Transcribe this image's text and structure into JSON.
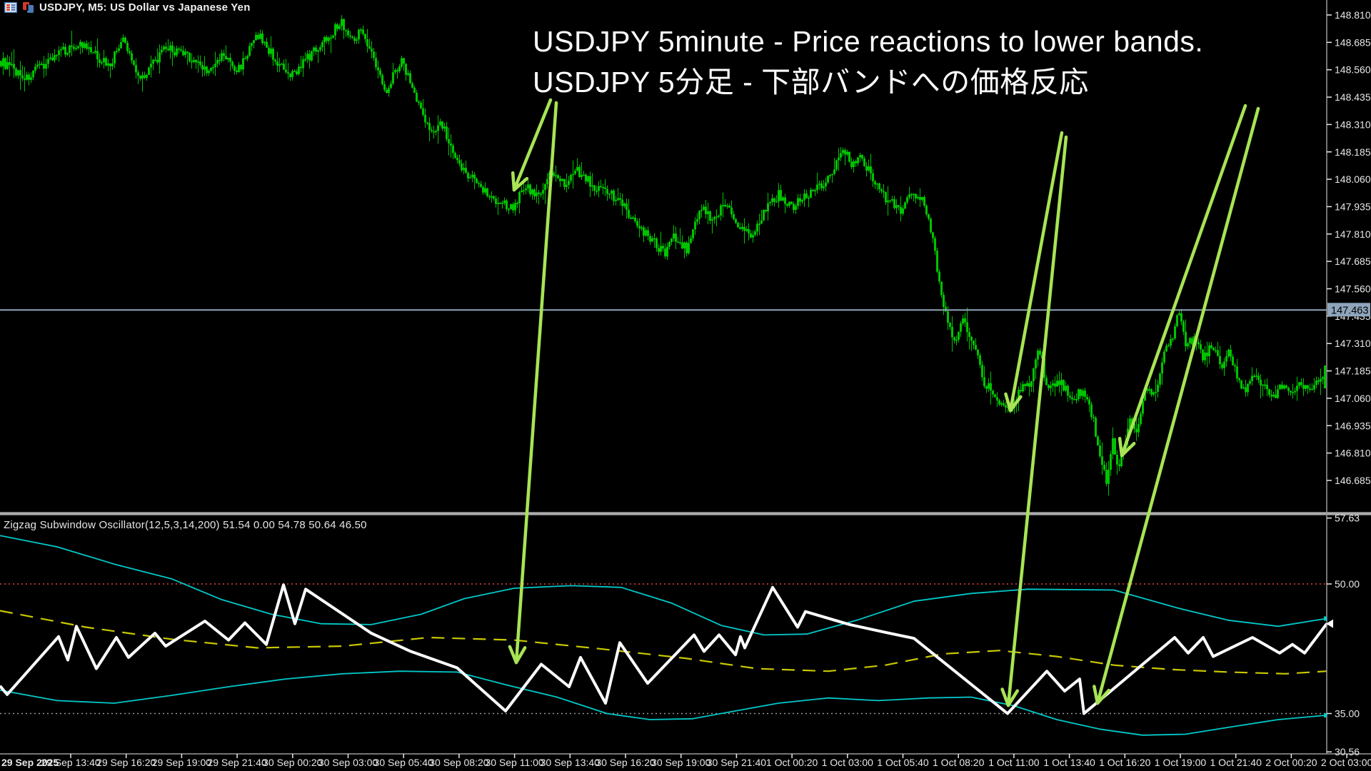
{
  "window": {
    "title": "USDJPY, M5:  US Dollar vs Japanese Yen"
  },
  "annotation": {
    "line1": "USDJPY 5minute - Price reactions to lower bands.",
    "line2": "USDJPY 5分足 - 下部バンドへの価格反応"
  },
  "colors": {
    "background": "#000000",
    "candle": "#00C300",
    "zigzag": "#FFFFFF",
    "bands": "#00C8C8",
    "middle_band": "#C8C800",
    "level_50": "#B03030",
    "level_35": "#9A9A9A",
    "price_marker": "#8FA5BC",
    "arrow": "#A8E455",
    "axis_text": "#E8E8E8",
    "axis_line": "#9A9A9A",
    "separator": "#ACACAC"
  },
  "arrows": [
    {
      "from": [
        771,
        140
      ],
      "to": [
        720,
        266
      ]
    },
    {
      "from": [
        779,
        144
      ],
      "to": [
        723,
        928
      ]
    },
    {
      "from": [
        1487,
        186
      ],
      "to": [
        1415,
        575
      ]
    },
    {
      "from": [
        1493,
        192
      ],
      "to": [
        1412,
        988
      ]
    },
    {
      "from": [
        1744,
        148
      ],
      "to": [
        1571,
        638
      ]
    },
    {
      "from": [
        1762,
        152
      ],
      "to": [
        1537,
        985
      ]
    }
  ],
  "chart_data": [
    {
      "type": "candlestick",
      "symbol": "USDJPY",
      "timeframe": "M5",
      "title": "USDJPY, M5: US Dollar vs Japanese Yen",
      "ylim": [
        146.62,
        148.87
      ],
      "y_axis_labels": [
        "148.810",
        "148.685",
        "148.560",
        "148.435",
        "148.310",
        "148.185",
        "148.060",
        "147.935",
        "147.810",
        "147.685",
        "147.560",
        "147.435",
        "147.310",
        "147.185",
        "147.060",
        "146.935",
        "146.810",
        "146.685"
      ],
      "price_marker": "147.463",
      "x_axis_labels": [
        "29 Sep 2025",
        "29 Sep 13:40",
        "29 Sep 16:20",
        "29 Sep 19:00",
        "29 Sep 21:40",
        "30 Sep 00:20",
        "30 Sep 03:00",
        "30 Sep 05:40",
        "30 Sep 08:20",
        "30 Sep 11:00",
        "30 Sep 13:40",
        "30 Sep 16:20",
        "30 Sep 19:00",
        "30 Sep 21:40",
        "1 Oct 00:20",
        "1 Oct 03:00",
        "1 Oct 05:40",
        "1 Oct 08:20",
        "1 Oct 11:00",
        "1 Oct 13:40",
        "1 Oct 16:20",
        "1 Oct 19:00",
        "1 Oct 21:40",
        "2 Oct 00:20",
        "2 Oct 03:00"
      ],
      "price_path": [
        [
          0,
          148.6
        ],
        [
          37,
          148.52
        ],
        [
          73,
          148.62
        ],
        [
          110,
          148.68
        ],
        [
          153,
          148.58
        ],
        [
          171,
          148.7
        ],
        [
          196,
          148.52
        ],
        [
          233,
          148.66
        ],
        [
          263,
          148.62
        ],
        [
          294,
          148.55
        ],
        [
          312,
          148.63
        ],
        [
          331,
          148.55
        ],
        [
          361,
          148.72
        ],
        [
          404,
          148.52
        ],
        [
          435,
          148.63
        ],
        [
          478,
          148.78
        ],
        [
          490,
          148.7
        ],
        [
          508,
          148.74
        ],
        [
          539,
          148.46
        ],
        [
          553,
          148.56
        ],
        [
          563,
          148.6
        ],
        [
          575,
          148.5
        ],
        [
          600,
          148.28
        ],
        [
          618,
          148.32
        ],
        [
          637,
          148.14
        ],
        [
          667,
          148.05
        ],
        [
          692,
          147.97
        ],
        [
          716,
          147.93
        ],
        [
          735,
          148.03
        ],
        [
          753,
          147.98
        ],
        [
          771,
          148.09
        ],
        [
          790,
          148.03
        ],
        [
          808,
          148.1
        ],
        [
          833,
          148.02
        ],
        [
          857,
          147.99
        ],
        [
          882,
          147.9
        ],
        [
          906,
          147.8
        ],
        [
          931,
          147.72
        ],
        [
          943,
          147.8
        ],
        [
          961,
          147.74
        ],
        [
          980,
          147.93
        ],
        [
          998,
          147.88
        ],
        [
          1016,
          147.95
        ],
        [
          1035,
          147.85
        ],
        [
          1053,
          147.8
        ],
        [
          1071,
          147.92
        ],
        [
          1090,
          147.99
        ],
        [
          1108,
          147.93
        ],
        [
          1127,
          147.98
        ],
        [
          1145,
          148.02
        ],
        [
          1163,
          148.08
        ],
        [
          1182,
          148.2
        ],
        [
          1194,
          148.12
        ],
        [
          1206,
          148.16
        ],
        [
          1225,
          148.04
        ],
        [
          1243,
          147.96
        ],
        [
          1261,
          147.92
        ],
        [
          1280,
          148.0
        ],
        [
          1294,
          147.95
        ],
        [
          1304,
          147.82
        ],
        [
          1316,
          147.56
        ],
        [
          1335,
          147.3
        ],
        [
          1347,
          147.44
        ],
        [
          1362,
          147.32
        ],
        [
          1377,
          147.14
        ],
        [
          1396,
          147.06
        ],
        [
          1414,
          146.99
        ],
        [
          1427,
          147.1
        ],
        [
          1442,
          147.12
        ],
        [
          1455,
          147.28
        ],
        [
          1467,
          147.1
        ],
        [
          1484,
          147.14
        ],
        [
          1500,
          147.06
        ],
        [
          1518,
          147.1
        ],
        [
          1531,
          146.96
        ],
        [
          1540,
          146.8
        ],
        [
          1549,
          146.67
        ],
        [
          1558,
          146.86
        ],
        [
          1565,
          146.73
        ],
        [
          1573,
          146.82
        ],
        [
          1582,
          146.97
        ],
        [
          1592,
          146.92
        ],
        [
          1604,
          147.12
        ],
        [
          1616,
          147.06
        ],
        [
          1631,
          147.28
        ],
        [
          1643,
          147.36
        ],
        [
          1651,
          147.46
        ],
        [
          1660,
          147.3
        ],
        [
          1673,
          147.34
        ],
        [
          1685,
          147.24
        ],
        [
          1697,
          147.3
        ],
        [
          1709,
          147.2
        ],
        [
          1721,
          147.27
        ],
        [
          1734,
          147.13
        ],
        [
          1746,
          147.1
        ],
        [
          1758,
          147.17
        ],
        [
          1770,
          147.12
        ],
        [
          1783,
          147.06
        ],
        [
          1795,
          147.12
        ],
        [
          1807,
          147.09
        ],
        [
          1819,
          147.13
        ],
        [
          1832,
          147.1
        ],
        [
          1844,
          147.13
        ],
        [
          1856,
          147.16
        ]
      ]
    },
    {
      "type": "line",
      "label": "Zigzag Subwindow Oscillator(12,5,3,14,200) 51.54 0.00 54.78 50.64 46.50",
      "ylim": [
        29.5,
        58.5
      ],
      "y_axis_labels": [
        [
          "57.63",
          57.63
        ],
        [
          "50.00",
          50.0
        ],
        [
          "35.00",
          35.0
        ],
        [
          "30.56",
          30.56
        ]
      ],
      "levels": [
        {
          "value": 50.0,
          "style": "dotted-red"
        },
        {
          "value": 35.0,
          "style": "dotted-gray"
        }
      ],
      "series": [
        {
          "name": "upper_band",
          "style": "solid-cyan",
          "points": [
            [
              0,
              55.6
            ],
            [
              80,
              54.3
            ],
            [
              160,
              52.3
            ],
            [
              240,
              50.6
            ],
            [
              310,
              48.2
            ],
            [
              380,
              46.5
            ],
            [
              450,
              45.4
            ],
            [
              520,
              45.3
            ],
            [
              590,
              46.5
            ],
            [
              650,
              48.3
            ],
            [
              720,
              49.5
            ],
            [
              800,
              49.8
            ],
            [
              870,
              49.6
            ],
            [
              940,
              47.8
            ],
            [
              1010,
              45.2
            ],
            [
              1070,
              44.1
            ],
            [
              1130,
              44.2
            ],
            [
              1200,
              45.8
            ],
            [
              1280,
              48.0
            ],
            [
              1360,
              48.9
            ],
            [
              1440,
              49.4
            ],
            [
              1560,
              49.3
            ],
            [
              1650,
              47.2
            ],
            [
              1720,
              45.8
            ],
            [
              1790,
              45.1
            ],
            [
              1858,
              46.0
            ]
          ]
        },
        {
          "name": "lower_band",
          "style": "solid-cyan",
          "points": [
            [
              0,
              37.7
            ],
            [
              80,
              36.5
            ],
            [
              160,
              36.2
            ],
            [
              240,
              37.1
            ],
            [
              320,
              38.1
            ],
            [
              400,
              39.0
            ],
            [
              480,
              39.6
            ],
            [
              560,
              39.9
            ],
            [
              640,
              39.8
            ],
            [
              710,
              38.3
            ],
            [
              780,
              36.9
            ],
            [
              850,
              35.0
            ],
            [
              910,
              34.3
            ],
            [
              970,
              34.4
            ],
            [
              1030,
              35.3
            ],
            [
              1090,
              36.2
            ],
            [
              1160,
              36.8
            ],
            [
              1230,
              36.5
            ],
            [
              1300,
              36.8
            ],
            [
              1360,
              36.9
            ],
            [
              1420,
              35.9
            ],
            [
              1480,
              34.3
            ],
            [
              1540,
              33.2
            ],
            [
              1600,
              32.5
            ],
            [
              1660,
              32.6
            ],
            [
              1720,
              33.4
            ],
            [
              1790,
              34.3
            ],
            [
              1858,
              34.8
            ]
          ]
        },
        {
          "name": "middle_band",
          "style": "dashed-yellow",
          "points": [
            [
              0,
              46.9
            ],
            [
              120,
              45.0
            ],
            [
              240,
              43.6
            ],
            [
              360,
              42.6
            ],
            [
              480,
              42.8
            ],
            [
              600,
              43.8
            ],
            [
              720,
              43.5
            ],
            [
              840,
              42.5
            ],
            [
              960,
              41.4
            ],
            [
              1060,
              40.2
            ],
            [
              1160,
              39.9
            ],
            [
              1240,
              40.6
            ],
            [
              1320,
              41.9
            ],
            [
              1400,
              42.3
            ],
            [
              1480,
              41.6
            ],
            [
              1560,
              40.6
            ],
            [
              1640,
              40.1
            ],
            [
              1720,
              39.8
            ],
            [
              1800,
              39.6
            ],
            [
              1858,
              39.9
            ]
          ]
        },
        {
          "name": "zigzag",
          "style": "thick-white",
          "points": [
            [
              0,
              38.2
            ],
            [
              10,
              37.2
            ],
            [
              82,
              43.9
            ],
            [
              95,
              41.2
            ],
            [
              107,
              45.1
            ],
            [
              135,
              40.2
            ],
            [
              163,
              43.8
            ],
            [
              180,
              41.5
            ],
            [
              217,
              44.3
            ],
            [
              232,
              42.8
            ],
            [
              287,
              45.7
            ],
            [
              320,
              43.5
            ],
            [
              343,
              45.5
            ],
            [
              373,
              43.0
            ],
            [
              397,
              49.9
            ],
            [
              413,
              45.4
            ],
            [
              428,
              49.4
            ],
            [
              520,
              44.3
            ],
            [
              575,
              42.2
            ],
            [
              640,
              40.3
            ],
            [
              708,
              35.3
            ],
            [
              758,
              40.7
            ],
            [
              797,
              38.1
            ],
            [
              813,
              41.5
            ],
            [
              848,
              36.2
            ],
            [
              868,
              43.2
            ],
            [
              907,
              38.5
            ],
            [
              972,
              44.1
            ],
            [
              986,
              42.2
            ],
            [
              1007,
              44.1
            ],
            [
              1030,
              41.8
            ],
            [
              1037,
              43.9
            ],
            [
              1043,
              42.6
            ],
            [
              1082,
              49.6
            ],
            [
              1117,
              45.0
            ],
            [
              1128,
              46.8
            ],
            [
              1190,
              45.3
            ],
            [
              1240,
              44.4
            ],
            [
              1280,
              43.7
            ],
            [
              1411,
              35.0
            ],
            [
              1466,
              39.9
            ],
            [
              1491,
              37.6
            ],
            [
              1512,
              39.0
            ],
            [
              1518,
              35.0
            ],
            [
              1645,
              43.8
            ],
            [
              1664,
              42.0
            ],
            [
              1685,
              43.8
            ],
            [
              1699,
              41.6
            ],
            [
              1754,
              43.8
            ],
            [
              1792,
              42.0
            ],
            [
              1810,
              43.0
            ],
            [
              1827,
              42.0
            ],
            [
              1858,
              45.4
            ]
          ]
        }
      ]
    }
  ]
}
